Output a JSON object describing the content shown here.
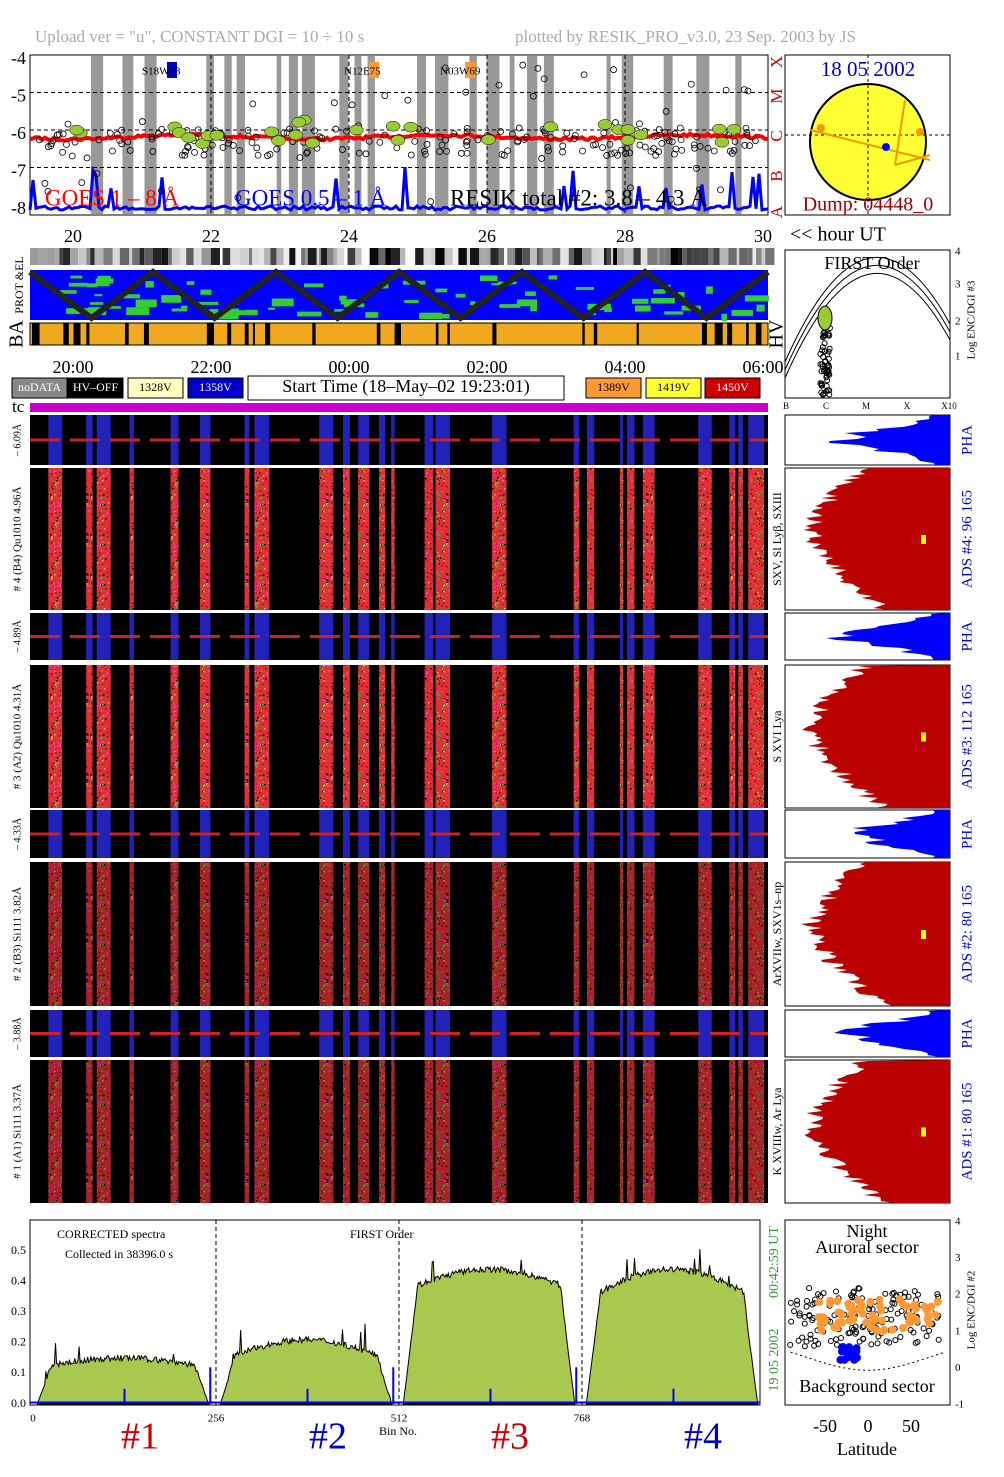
{
  "header": {
    "left": "Upload ver = \"u\", CONSTANT  DGI =  10 ÷  10 s",
    "right": "plotted by RESIK_PRO_v3.0, 23 Sep. 2003 by JS"
  },
  "goes": {
    "yticks": [
      "-4",
      "-5",
      "-6",
      "-7",
      "-8"
    ],
    "classes": [
      "X",
      "M",
      "C",
      "B",
      "A"
    ],
    "regions": [
      "S18W33",
      "N12E75",
      "N03W69"
    ],
    "legend": [
      "GOES 1 – 8 Å",
      "GOES 0.5 – 1 Å",
      "RESIK total #2: 3.8 – 4.3 Å"
    ]
  },
  "sun": {
    "date": "18 05 2002",
    "dump": "Dump: 04448_0"
  },
  "day_axis": {
    "ticks": [
      "20",
      "22",
      "24",
      "26",
      "28",
      "30"
    ],
    "unit": "<< hour UT"
  },
  "strips": {
    "labels": [
      "PROT &EL",
      "BA",
      "HV"
    ]
  },
  "time_axis": {
    "ticks": [
      "20:00",
      "22:00",
      "00:00",
      "02:00",
      "04:00",
      "06:00"
    ]
  },
  "legend": {
    "items": [
      "noDATA",
      "HV–OFF",
      "1328V",
      "1358V",
      "1389V",
      "1419V",
      "1450V"
    ],
    "start_time": "Start Time (18–May–02 19:23:01)"
  },
  "first_order": {
    "title": "FIRST Order",
    "yticks": [
      "1",
      "2",
      "3",
      "4"
    ],
    "xticks": [
      "B",
      "C",
      "M",
      "X",
      "X10"
    ],
    "ylabel": "Log ENC/DGI #3"
  },
  "tc": "tc",
  "channels": [
    {
      "thin_label": "– 6.09Å",
      "thick_label": "# 4 (B4) Qu1010 4.96Å",
      "line_label": "SXV, Sl Lyβ, SXIII",
      "pha": "PHA",
      "ads_label": "ADS #4:   96 165"
    },
    {
      "thin_label": "– 4.89Å",
      "thick_label": "# 3 (A2) Qu1010 4.31Å",
      "line_label": "S XVI Lya",
      "pha": "PHA",
      "ads_label": "ADS #3:  112 165"
    },
    {
      "thin_label": "– 4.33Å",
      "thick_label": "# 2 (B3) Si111 3.82Å",
      "line_label": "ArXVIIw, SXV1s–np",
      "pha": "PHA",
      "ads_label": "ADS #2:   80 165"
    },
    {
      "thin_label": "– 3.88Å",
      "thick_label": "# 1 (A1) Si111 3.37Å",
      "line_label": "K XVIIIw, Ar Lya",
      "pha": "PHA",
      "ads_label": "ADS #1:   80 165"
    }
  ],
  "spectrum": {
    "title": "CORRECTED spectra",
    "collected": "Collected in 38396.0 s",
    "order": "FIRST Order",
    "yticks": [
      "0.0",
      "0.1",
      "0.2",
      "0.3",
      "0.4",
      "0.5"
    ],
    "xticks": [
      "0",
      "256",
      "512",
      "768"
    ],
    "xlabel": "Bin No.",
    "channels": [
      "#1",
      "#2",
      "#3",
      "#4"
    ],
    "date": "19 05 2002",
    "time": "00:42:59 UT"
  },
  "latitude": {
    "title1": "Night",
    "title2": "Auroral sector",
    "bottom": "Background sector",
    "xticks": [
      "-50",
      "0",
      "50"
    ],
    "xlabel": "Latitude",
    "yticks": [
      "-1",
      "0",
      "1",
      "2",
      "3",
      "4"
    ],
    "ylabel": "Log ENC/DGI #2"
  }
}
